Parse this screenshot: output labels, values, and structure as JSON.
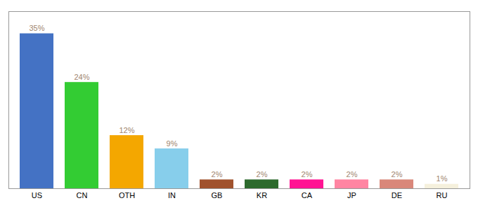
{
  "chart_data": {
    "type": "bar",
    "categories": [
      "US",
      "CN",
      "OTH",
      "IN",
      "GB",
      "KR",
      "CA",
      "JP",
      "DE",
      "RU"
    ],
    "values": [
      35,
      24,
      12,
      9,
      2,
      2,
      2,
      2,
      2,
      1
    ],
    "value_labels": [
      "35%",
      "24%",
      "12%",
      "9%",
      "2%",
      "2%",
      "2%",
      "2%",
      "2%",
      "1%"
    ],
    "colors": [
      "#4472c4",
      "#33cc33",
      "#f4a700",
      "#87ceeb",
      "#a0522d",
      "#2d6a2d",
      "#ff1493",
      "#ff85a2",
      "#d9877a",
      "#f5f0dc"
    ],
    "ylim": [
      0,
      40
    ],
    "data_labels": true,
    "tick_labels": "x",
    "grid": false
  }
}
